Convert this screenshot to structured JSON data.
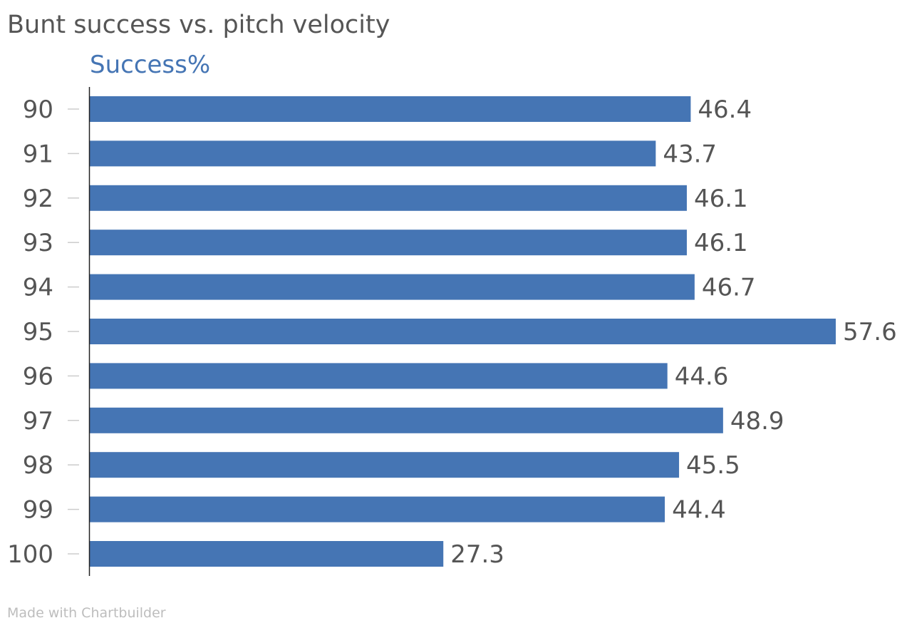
{
  "chart_data": {
    "type": "bar",
    "orientation": "horizontal",
    "title": "Bunt success vs. pitch velocity",
    "series": [
      {
        "name": "Success%",
        "values": [
          46.4,
          43.7,
          46.1,
          46.1,
          46.7,
          57.6,
          44.6,
          48.9,
          45.5,
          44.4,
          27.3
        ]
      }
    ],
    "categories": [
      "90",
      "91",
      "92",
      "93",
      "94",
      "95",
      "96",
      "97",
      "98",
      "99",
      "100"
    ],
    "xlim": [
      0,
      57.6
    ],
    "grid": false,
    "legend": "top-left",
    "data_labels": true,
    "colors": {
      "bar": "#4575b4",
      "series_label": "#4575b4",
      "text": "#555555",
      "axis": "#222222",
      "tick": "#cccccc",
      "credit": "#bdbdbd"
    }
  },
  "footer": {
    "credit": "Made with Chartbuilder"
  }
}
